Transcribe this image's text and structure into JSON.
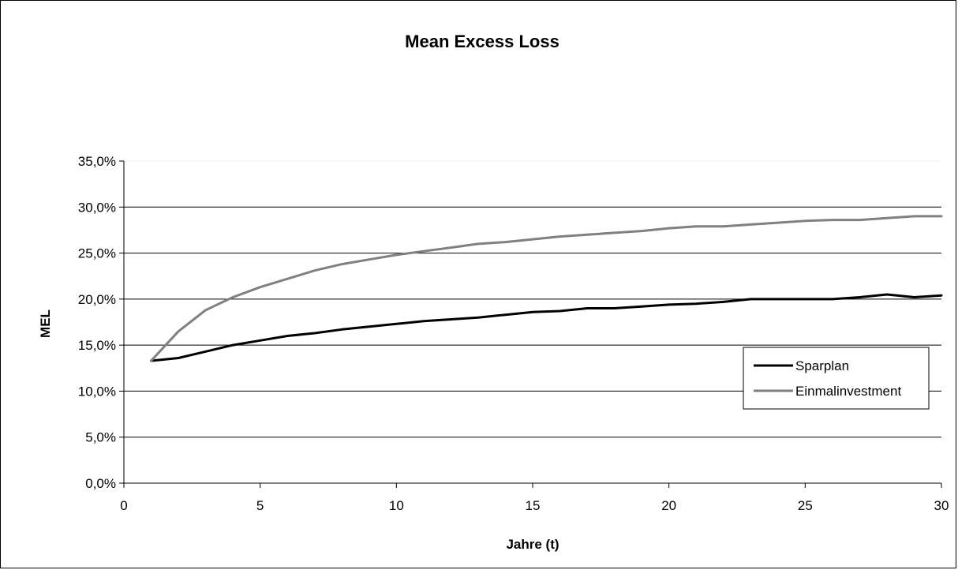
{
  "chart_data": {
    "type": "line",
    "title": "Mean Excess Loss",
    "xlabel": "Jahre (t)",
    "ylabel": "MEL",
    "xlim": [
      0,
      30
    ],
    "ylim": [
      0,
      35
    ],
    "x_ticks": [
      "0",
      "5",
      "10",
      "15",
      "20",
      "25",
      "30"
    ],
    "y_ticks": [
      "0,0%",
      "5,0%",
      "10,0%",
      "15,0%",
      "20,0%",
      "25,0%",
      "30,0%",
      "35,0%"
    ],
    "grid": "horizontal",
    "legend_position": "right",
    "x": [
      1,
      2,
      3,
      4,
      5,
      6,
      7,
      8,
      9,
      10,
      11,
      12,
      13,
      14,
      15,
      16,
      17,
      18,
      19,
      20,
      21,
      22,
      23,
      24,
      25,
      26,
      27,
      28,
      29,
      30
    ],
    "series": [
      {
        "name": "Sparplan",
        "color": "#000000",
        "values": [
          13.3,
          13.6,
          14.3,
          15.0,
          15.5,
          16.0,
          16.3,
          16.7,
          17.0,
          17.3,
          17.6,
          17.8,
          18.0,
          18.3,
          18.6,
          18.7,
          19.0,
          19.0,
          19.2,
          19.4,
          19.5,
          19.7,
          20.0,
          20.0,
          20.0,
          20.0,
          20.2,
          20.5,
          20.2,
          20.4
        ]
      },
      {
        "name": "Einmalinvestment",
        "color": "#808080",
        "values": [
          13.3,
          16.5,
          18.8,
          20.2,
          21.3,
          22.2,
          23.1,
          23.8,
          24.3,
          24.8,
          25.2,
          25.6,
          26.0,
          26.2,
          26.5,
          26.8,
          27.0,
          27.2,
          27.4,
          27.7,
          27.9,
          27.9,
          28.1,
          28.3,
          28.5,
          28.6,
          28.6,
          28.8,
          29.0,
          29.0
        ]
      }
    ]
  }
}
